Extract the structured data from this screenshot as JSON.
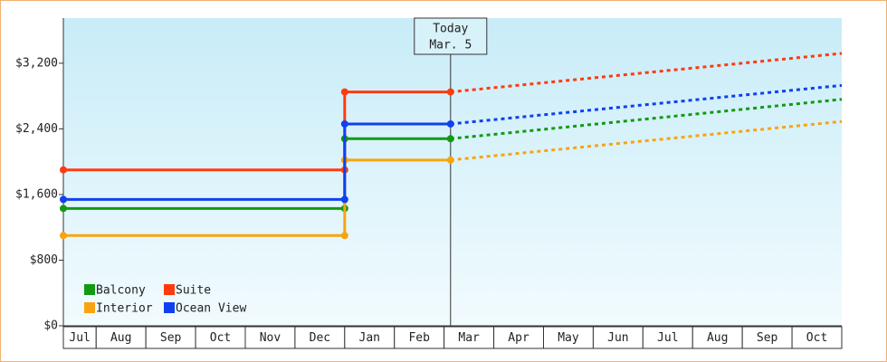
{
  "chart_data": {
    "type": "step-line",
    "categories": [
      "Jul",
      "Aug",
      "Sep",
      "Oct",
      "Nov",
      "Dec",
      "Jan",
      "Feb",
      "Mar",
      "Apr",
      "May",
      "Jun",
      "Jul",
      "Aug",
      "Sep",
      "Oct"
    ],
    "xlim": [
      0.34,
      16
    ],
    "ylim": [
      0,
      3750
    ],
    "yticks": [
      {
        "value": 0,
        "label": "$0"
      },
      {
        "value": 800,
        "label": "$800"
      },
      {
        "value": 1600,
        "label": "$1,600"
      },
      {
        "value": 2400,
        "label": "$2,400"
      },
      {
        "value": 3200,
        "label": "$3,200"
      }
    ],
    "today": {
      "x": 8.13,
      "label": [
        "Today",
        "Mar. 5"
      ]
    },
    "series": [
      {
        "name": "Balcony",
        "color": "#129a12",
        "x": [
          0.34,
          6,
          6,
          8.13
        ],
        "values": [
          1430,
          1430,
          2280,
          2280
        ],
        "forecast": {
          "x": 16,
          "value": 2760
        }
      },
      {
        "name": "Suite",
        "color": "#ff3a10",
        "x": [
          0.34,
          6,
          6,
          8.13
        ],
        "values": [
          1900,
          1900,
          2850,
          2850
        ],
        "forecast": {
          "x": 16,
          "value": 3320
        }
      },
      {
        "name": "Interior",
        "color": "#f8a410",
        "x": [
          0.34,
          6,
          6,
          8.13
        ],
        "values": [
          1100,
          1100,
          2020,
          2020
        ],
        "forecast": {
          "x": 16,
          "value": 2490
        }
      },
      {
        "name": "Ocean View",
        "color": "#1040f0",
        "x": [
          0.34,
          6,
          6,
          8.13
        ],
        "values": [
          1540,
          1540,
          2460,
          2460
        ],
        "forecast": {
          "x": 16,
          "value": 2930
        }
      }
    ]
  }
}
